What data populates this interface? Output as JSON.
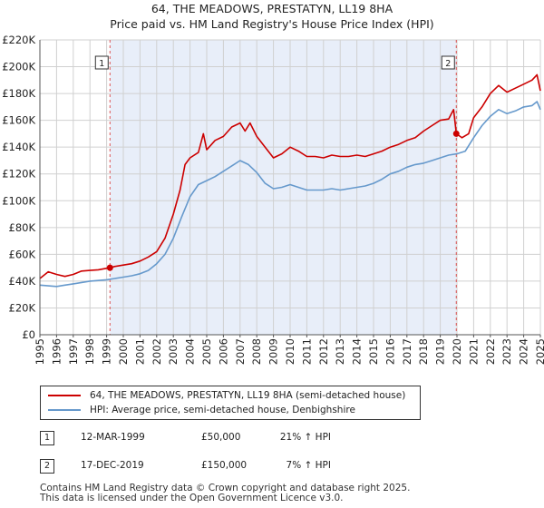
{
  "title_line1": "64, THE MEADOWS, PRESTATYN, LL19 8HA",
  "title_line2": "Price paid vs. HM Land Registry's House Price Index (HPI)",
  "chart_data": {
    "type": "line",
    "xlim": [
      1995,
      2025
    ],
    "ylim": [
      0,
      220000
    ],
    "x_ticks": [
      "1995",
      "1996",
      "1997",
      "1998",
      "1999",
      "2000",
      "2001",
      "2002",
      "2003",
      "2004",
      "2005",
      "2006",
      "2007",
      "2008",
      "2009",
      "2010",
      "2011",
      "2012",
      "2013",
      "2014",
      "2015",
      "2016",
      "2017",
      "2018",
      "2019",
      "2020",
      "2021",
      "2022",
      "2023",
      "2024",
      "2025"
    ],
    "y_ticks": [
      {
        "value": 0,
        "label": "£0"
      },
      {
        "value": 20000,
        "label": "£20K"
      },
      {
        "value": 40000,
        "label": "£40K"
      },
      {
        "value": 60000,
        "label": "£60K"
      },
      {
        "value": 80000,
        "label": "£80K"
      },
      {
        "value": 100000,
        "label": "£100K"
      },
      {
        "value": 120000,
        "label": "£120K"
      },
      {
        "value": 140000,
        "label": "£140K"
      },
      {
        "value": 160000,
        "label": "£160K"
      },
      {
        "value": 180000,
        "label": "£180K"
      },
      {
        "value": 200000,
        "label": "£200K"
      },
      {
        "value": 220000,
        "label": "£220K"
      }
    ],
    "grid": true,
    "shaded_region": [
      1999.2,
      2019.96
    ],
    "series": [
      {
        "name": "64, THE MEADOWS, PRESTATYN, LL19 8HA (semi-detached house)",
        "color": "#cc0000",
        "points": [
          [
            1995,
            42000
          ],
          [
            1995.5,
            47000
          ],
          [
            1996,
            45000
          ],
          [
            1996.5,
            43500
          ],
          [
            1997,
            45000
          ],
          [
            1997.5,
            47500
          ],
          [
            1998,
            48000
          ],
          [
            1998.5,
            48500
          ],
          [
            1999.2,
            50000
          ],
          [
            1999.5,
            51000
          ],
          [
            2000,
            52000
          ],
          [
            2000.5,
            53000
          ],
          [
            2001,
            55000
          ],
          [
            2001.5,
            58000
          ],
          [
            2002,
            62000
          ],
          [
            2002.5,
            72000
          ],
          [
            2003,
            90000
          ],
          [
            2003.4,
            108000
          ],
          [
            2003.7,
            127000
          ],
          [
            2004,
            132000
          ],
          [
            2004.5,
            136000
          ],
          [
            2004.8,
            150000
          ],
          [
            2005,
            138000
          ],
          [
            2005.5,
            145000
          ],
          [
            2006,
            148000
          ],
          [
            2006.5,
            155000
          ],
          [
            2007,
            158000
          ],
          [
            2007.3,
            152000
          ],
          [
            2007.6,
            158000
          ],
          [
            2008,
            148000
          ],
          [
            2008.5,
            140000
          ],
          [
            2009,
            132000
          ],
          [
            2009.5,
            135000
          ],
          [
            2010,
            140000
          ],
          [
            2010.5,
            137000
          ],
          [
            2011,
            133000
          ],
          [
            2011.5,
            133000
          ],
          [
            2012,
            132000
          ],
          [
            2012.5,
            134000
          ],
          [
            2013,
            133000
          ],
          [
            2013.5,
            133000
          ],
          [
            2014,
            134000
          ],
          [
            2014.5,
            133000
          ],
          [
            2015,
            135000
          ],
          [
            2015.5,
            137000
          ],
          [
            2016,
            140000
          ],
          [
            2016.5,
            142000
          ],
          [
            2017,
            145000
          ],
          [
            2017.5,
            147000
          ],
          [
            2018,
            152000
          ],
          [
            2018.5,
            156000
          ],
          [
            2019,
            160000
          ],
          [
            2019.5,
            161000
          ],
          [
            2019.8,
            168000
          ],
          [
            2019.96,
            150000
          ],
          [
            2020.3,
            147000
          ],
          [
            2020.7,
            150000
          ],
          [
            2021,
            162000
          ],
          [
            2021.5,
            170000
          ],
          [
            2022,
            180000
          ],
          [
            2022.5,
            186000
          ],
          [
            2023,
            181000
          ],
          [
            2023.5,
            184000
          ],
          [
            2024,
            187000
          ],
          [
            2024.5,
            190000
          ],
          [
            2024.8,
            194000
          ],
          [
            2025,
            182000
          ]
        ]
      },
      {
        "name": "HPI: Average price, semi-detached house, Denbighshire",
        "color": "#6699cc",
        "points": [
          [
            1995,
            37000
          ],
          [
            1995.5,
            36500
          ],
          [
            1996,
            36000
          ],
          [
            1996.5,
            37000
          ],
          [
            1997,
            38000
          ],
          [
            1997.5,
            39000
          ],
          [
            1998,
            40000
          ],
          [
            1998.5,
            40500
          ],
          [
            1999,
            41000
          ],
          [
            1999.5,
            42000
          ],
          [
            2000,
            43000
          ],
          [
            2000.5,
            44000
          ],
          [
            2001,
            45500
          ],
          [
            2001.5,
            48000
          ],
          [
            2002,
            53000
          ],
          [
            2002.5,
            60000
          ],
          [
            2003,
            72000
          ],
          [
            2003.5,
            88000
          ],
          [
            2004,
            103000
          ],
          [
            2004.5,
            112000
          ],
          [
            2005,
            115000
          ],
          [
            2005.5,
            118000
          ],
          [
            2006,
            122000
          ],
          [
            2006.5,
            126000
          ],
          [
            2007,
            130000
          ],
          [
            2007.5,
            127000
          ],
          [
            2008,
            121000
          ],
          [
            2008.5,
            113000
          ],
          [
            2009,
            109000
          ],
          [
            2009.5,
            110000
          ],
          [
            2010,
            112000
          ],
          [
            2010.5,
            110000
          ],
          [
            2011,
            108000
          ],
          [
            2011.5,
            108000
          ],
          [
            2012,
            108000
          ],
          [
            2012.5,
            109000
          ],
          [
            2013,
            108000
          ],
          [
            2013.5,
            109000
          ],
          [
            2014,
            110000
          ],
          [
            2014.5,
            111000
          ],
          [
            2015,
            113000
          ],
          [
            2015.5,
            116000
          ],
          [
            2016,
            120000
          ],
          [
            2016.5,
            122000
          ],
          [
            2017,
            125000
          ],
          [
            2017.5,
            127000
          ],
          [
            2018,
            128000
          ],
          [
            2018.5,
            130000
          ],
          [
            2019,
            132000
          ],
          [
            2019.5,
            134000
          ],
          [
            2020,
            135000
          ],
          [
            2020.5,
            137000
          ],
          [
            2021,
            147000
          ],
          [
            2021.5,
            156000
          ],
          [
            2022,
            163000
          ],
          [
            2022.5,
            168000
          ],
          [
            2023,
            165000
          ],
          [
            2023.5,
            167000
          ],
          [
            2024,
            170000
          ],
          [
            2024.5,
            171000
          ],
          [
            2024.8,
            174000
          ],
          [
            2025,
            168000
          ]
        ]
      }
    ],
    "sale_markers": [
      {
        "label": "1",
        "x": 1999.2,
        "y": 50000
      },
      {
        "label": "2",
        "x": 2019.96,
        "y": 150000
      }
    ]
  },
  "legend": {
    "items": [
      {
        "label": "64, THE MEADOWS, PRESTATYN, LL19 8HA (semi-detached house)",
        "color": "#cc0000"
      },
      {
        "label": "HPI: Average price, semi-detached house, Denbighshire",
        "color": "#6699cc"
      }
    ]
  },
  "sales": [
    {
      "num": "1",
      "date": "12-MAR-1999",
      "price": "£50,000",
      "hpi": "21% ↑ HPI"
    },
    {
      "num": "2",
      "date": "17-DEC-2019",
      "price": "£150,000",
      "hpi": "7% ↑ HPI"
    }
  ],
  "footer": {
    "line1": "Contains HM Land Registry data © Crown copyright and database right 2025.",
    "line2": "This data is licensed under the Open Government Licence v3.0."
  }
}
